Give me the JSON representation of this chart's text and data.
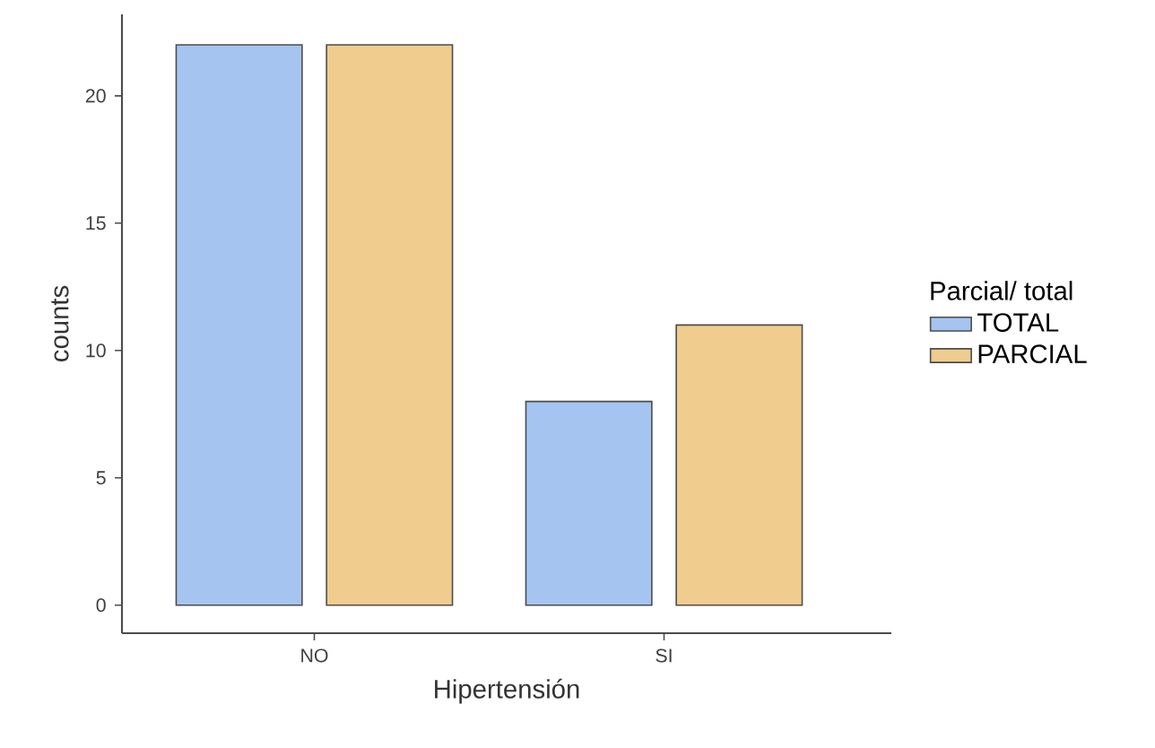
{
  "chart_data": {
    "type": "bar",
    "xlabel": "Hipertensión",
    "ylabel": "counts",
    "legend_title": "Parcial/ total",
    "categories": [
      "NO",
      "SI"
    ],
    "series": [
      {
        "name": "TOTAL",
        "color": "#a6c4f0",
        "values": [
          22,
          8
        ]
      },
      {
        "name": "PARCIAL",
        "color": "#f0cc8e",
        "values": [
          22,
          11
        ]
      }
    ],
    "ylim": [
      -1.1,
      23.2
    ],
    "yticks": [
      0,
      5,
      10,
      15,
      20
    ],
    "legend": "right"
  }
}
